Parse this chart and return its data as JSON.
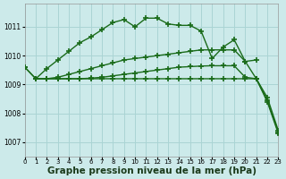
{
  "background_color": "#cceaea",
  "grid_color": "#aad4d4",
  "line_color": "#1a6b1a",
  "xlabel": "Graphe pression niveau de la mer (hPa)",
  "xlabel_fontsize": 7.5,
  "ylim": [
    1006.5,
    1011.8
  ],
  "xlim": [
    0,
    23
  ],
  "yticks": [
    1007,
    1008,
    1009,
    1010,
    1011
  ],
  "xticks": [
    0,
    1,
    2,
    3,
    4,
    5,
    6,
    7,
    8,
    9,
    10,
    11,
    12,
    13,
    14,
    15,
    16,
    17,
    18,
    19,
    20,
    21,
    22,
    23
  ],
  "series": [
    {
      "x": [
        0,
        1,
        2,
        3,
        4,
        5,
        6,
        7,
        8,
        9,
        10,
        11,
        12,
        13,
        14,
        15,
        16,
        17,
        18,
        19,
        20,
        21
      ],
      "y": [
        1009.6,
        1009.2,
        1009.55,
        1009.85,
        1010.15,
        1010.45,
        1010.65,
        1010.9,
        1011.15,
        1011.25,
        1011.0,
        1011.3,
        1011.3,
        1011.1,
        1011.05,
        1011.05,
        1010.85,
        1009.9,
        1010.3,
        1010.55,
        1009.8,
        1009.85
      ],
      "linewidth": 1.0,
      "marker": "+",
      "markersize": 4.5,
      "markeredgewidth": 1.2
    },
    {
      "x": [
        0,
        1,
        2,
        3,
        4,
        5,
        6,
        7,
        8,
        9,
        10,
        11,
        12,
        13,
        14,
        15,
        16,
        17,
        18,
        19,
        20,
        21,
        22,
        23
      ],
      "y": [
        1009.6,
        1009.2,
        1009.2,
        1009.25,
        1009.35,
        1009.45,
        1009.55,
        1009.65,
        1009.75,
        1009.85,
        1009.9,
        1009.95,
        1010.0,
        1010.05,
        1010.1,
        1010.15,
        1010.2,
        1010.2,
        1010.2,
        1010.2,
        1009.8,
        1009.2,
        1008.55,
        1007.4
      ],
      "linewidth": 1.0,
      "marker": "+",
      "markersize": 4.5,
      "markeredgewidth": 1.2
    },
    {
      "x": [
        1,
        2,
        3,
        4,
        5,
        6,
        7,
        8,
        9,
        10,
        11,
        12,
        13,
        14,
        15,
        16,
        17,
        18,
        19,
        20,
        21,
        22,
        23
      ],
      "y": [
        1009.2,
        1009.2,
        1009.2,
        1009.2,
        1009.2,
        1009.22,
        1009.25,
        1009.3,
        1009.35,
        1009.4,
        1009.45,
        1009.5,
        1009.55,
        1009.6,
        1009.62,
        1009.64,
        1009.65,
        1009.65,
        1009.65,
        1009.25,
        1009.2,
        1008.45,
        1007.35
      ],
      "linewidth": 1.0,
      "marker": "+",
      "markersize": 4.5,
      "markeredgewidth": 1.2
    },
    {
      "x": [
        1,
        2,
        3,
        4,
        5,
        6,
        7,
        8,
        9,
        10,
        11,
        12,
        13,
        14,
        15,
        16,
        17,
        18,
        19,
        20,
        21,
        22,
        23
      ],
      "y": [
        1009.2,
        1009.2,
        1009.2,
        1009.2,
        1009.2,
        1009.2,
        1009.2,
        1009.2,
        1009.2,
        1009.2,
        1009.2,
        1009.2,
        1009.2,
        1009.2,
        1009.2,
        1009.2,
        1009.2,
        1009.2,
        1009.2,
        1009.2,
        1009.2,
        1008.4,
        1007.3
      ],
      "linewidth": 1.0,
      "marker": "+",
      "markersize": 4.5,
      "markeredgewidth": 1.2
    }
  ]
}
